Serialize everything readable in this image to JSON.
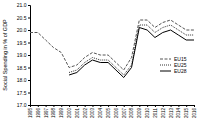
{
  "chart_data": {
    "type": "line",
    "y_label": "Social Spending in % of GDP",
    "x": [
      1995,
      1996,
      1997,
      1998,
      1999,
      2000,
      2001,
      2002,
      2003,
      2004,
      2005,
      2006,
      2007,
      2008,
      2009,
      2010,
      2011,
      2012,
      2013,
      2014,
      2015,
      2016
    ],
    "series": [
      {
        "name": "EU15",
        "color": "#555555",
        "line_style": "dashed",
        "values": [
          19.9,
          19.9,
          19.6,
          19.3,
          19.1,
          18.5,
          18.6,
          18.9,
          19.1,
          19.0,
          19.0,
          18.7,
          18.4,
          18.9,
          20.4,
          20.4,
          20.1,
          20.3,
          20.4,
          20.2,
          20.0,
          20.0
        ]
      },
      {
        "name": "EU25",
        "color": "#333333",
        "line_style": "dotted",
        "values": [
          null,
          null,
          null,
          null,
          null,
          18.3,
          18.4,
          18.7,
          18.9,
          18.8,
          18.8,
          18.5,
          18.2,
          18.6,
          20.2,
          20.2,
          19.9,
          20.1,
          20.2,
          20.0,
          19.8,
          19.8
        ]
      },
      {
        "name": "EU28",
        "color": "#000000",
        "line_style": "solid",
        "values": [
          null,
          null,
          null,
          null,
          null,
          18.2,
          18.3,
          18.6,
          18.8,
          18.7,
          18.7,
          18.4,
          18.1,
          18.5,
          20.1,
          20.0,
          19.7,
          19.9,
          20.0,
          19.8,
          19.6,
          19.6
        ]
      }
    ],
    "xlim": [
      1995,
      2016
    ],
    "xticks": [
      1995,
      1996,
      1997,
      1998,
      1999,
      2000,
      2001,
      2002,
      2003,
      2004,
      2005,
      2006,
      2007,
      2008,
      2009,
      2010,
      2011,
      2012,
      2013,
      2014,
      2015,
      2016
    ],
    "ylim": [
      17,
      21
    ],
    "yticks": [
      {
        "value": 17,
        "label": "17.0"
      },
      {
        "value": 17.5,
        "label": "17.5"
      },
      {
        "value": 18,
        "label": "18.0"
      },
      {
        "value": 18.5,
        "label": "18.5"
      },
      {
        "value": 19,
        "label": "19.0"
      },
      {
        "value": 19.5,
        "label": "19.5"
      },
      {
        "value": 20,
        "label": "20.0"
      },
      {
        "value": 20.5,
        "label": "20.5"
      },
      {
        "value": 21,
        "label": "21.0"
      }
    ],
    "legend": "right"
  }
}
